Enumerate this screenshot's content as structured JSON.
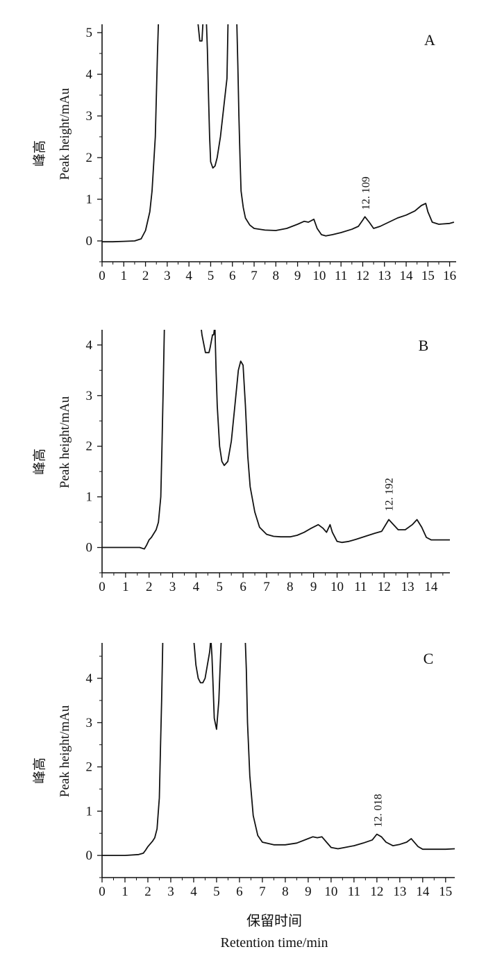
{
  "chart_data": [
    {
      "type": "line",
      "panel_label": "A",
      "ylabel_cn": "峰高",
      "ylabel": "Peak height/mAu",
      "xlim": [
        0,
        16.3
      ],
      "ylim": [
        -0.5,
        5.2
      ],
      "xticks": [
        0,
        1,
        2,
        3,
        4,
        5,
        6,
        7,
        8,
        9,
        10,
        11,
        12,
        13,
        14,
        15,
        16
      ],
      "yticks": [
        0,
        1,
        2,
        3,
        4,
        5
      ],
      "annotation": {
        "text": "12. 109",
        "x": 12.109,
        "y": 0.58
      },
      "series": [
        {
          "x": [
            0,
            0.5,
            1,
            1.5,
            1.8,
            2.0,
            2.2,
            2.3,
            2.45,
            2.55,
            2.6,
            4.4,
            4.5,
            4.6,
            4.65,
            4.8,
            4.85,
            4.9,
            4.95,
            5.0,
            5.1,
            5.2,
            5.3,
            5.45,
            5.6,
            5.75,
            5.8,
            5.85,
            6.2,
            6.25,
            6.3,
            6.35,
            6.4,
            6.5,
            6.6,
            6.8,
            7.0,
            7.5,
            8.0,
            8.5,
            9.0,
            9.3,
            9.5,
            9.75,
            9.9,
            10.1,
            10.3,
            10.6,
            11.0,
            11.5,
            11.8,
            12.0,
            12.1,
            12.3,
            12.5,
            12.8,
            13.2,
            13.6,
            14.0,
            14.4,
            14.7,
            14.9,
            15.0,
            15.2,
            15.5,
            16.0,
            16.2
          ],
          "y": [
            -0.02,
            -0.02,
            -0.01,
            0.0,
            0.05,
            0.25,
            0.7,
            1.2,
            2.5,
            4.5,
            5.3,
            5.3,
            4.8,
            4.8,
            5.3,
            5.3,
            4.6,
            3.5,
            2.5,
            1.9,
            1.75,
            1.8,
            2.0,
            2.5,
            3.2,
            3.9,
            5.3,
            5.3,
            5.3,
            4.2,
            3.0,
            2.0,
            1.2,
            0.8,
            0.55,
            0.38,
            0.3,
            0.26,
            0.25,
            0.3,
            0.4,
            0.47,
            0.45,
            0.52,
            0.3,
            0.15,
            0.12,
            0.15,
            0.2,
            0.28,
            0.35,
            0.5,
            0.58,
            0.45,
            0.3,
            0.35,
            0.45,
            0.55,
            0.62,
            0.72,
            0.85,
            0.9,
            0.7,
            0.45,
            0.4,
            0.42,
            0.45
          ]
        }
      ]
    },
    {
      "type": "line",
      "panel_label": "B",
      "ylabel_cn": "峰高",
      "ylabel": "Peak height/mAu",
      "xlim": [
        0,
        14.8
      ],
      "ylim": [
        -0.5,
        4.3
      ],
      "xticks": [
        0,
        1,
        2,
        3,
        4,
        5,
        6,
        7,
        8,
        9,
        10,
        11,
        12,
        13,
        14
      ],
      "yticks": [
        0,
        1,
        2,
        3,
        4
      ],
      "annotation": {
        "text": "12. 192",
        "x": 12.192,
        "y": 0.58
      },
      "series": [
        {
          "x": [
            0,
            1.0,
            1.6,
            1.8,
            1.9,
            2.0,
            2.1,
            2.3,
            2.4,
            2.5,
            2.55,
            2.6,
            2.65,
            2.7,
            4.2,
            4.25,
            4.4,
            4.55,
            4.6,
            4.7,
            4.75,
            4.8,
            4.85,
            4.9,
            5.0,
            5.1,
            5.2,
            5.35,
            5.5,
            5.65,
            5.8,
            5.9,
            6.0,
            6.1,
            6.2,
            6.3,
            6.5,
            6.7,
            7.0,
            7.3,
            7.6,
            8.0,
            8.3,
            8.6,
            8.9,
            9.2,
            9.4,
            9.55,
            9.7,
            9.8,
            10.0,
            10.2,
            10.5,
            10.8,
            11.2,
            11.6,
            11.9,
            12.2,
            12.4,
            12.6,
            12.9,
            13.2,
            13.4,
            13.6,
            13.8,
            14.0,
            14.5,
            14.8
          ],
          "y": [
            0,
            0,
            0,
            -0.03,
            0.05,
            0.15,
            0.2,
            0.35,
            0.5,
            1.0,
            2.0,
            3.1,
            4.3,
            4.4,
            4.4,
            4.2,
            3.85,
            3.85,
            3.95,
            4.2,
            4.2,
            4.4,
            3.5,
            2.8,
            2.0,
            1.7,
            1.62,
            1.7,
            2.1,
            2.8,
            3.5,
            3.68,
            3.6,
            2.8,
            1.8,
            1.2,
            0.7,
            0.4,
            0.26,
            0.22,
            0.21,
            0.21,
            0.24,
            0.3,
            0.38,
            0.45,
            0.38,
            0.3,
            0.45,
            0.3,
            0.12,
            0.1,
            0.12,
            0.16,
            0.22,
            0.28,
            0.32,
            0.55,
            0.45,
            0.35,
            0.35,
            0.45,
            0.55,
            0.4,
            0.2,
            0.15,
            0.15,
            0.15
          ]
        }
      ]
    },
    {
      "type": "line",
      "panel_label": "C",
      "ylabel_cn": "峰高",
      "ylabel": "Peak height/mAu",
      "xlim": [
        0,
        15.4
      ],
      "ylim": [
        -0.5,
        4.8
      ],
      "xticks": [
        0,
        1,
        2,
        3,
        4,
        5,
        6,
        7,
        8,
        9,
        10,
        11,
        12,
        13,
        14,
        15
      ],
      "yticks": [
        0,
        1,
        2,
        3,
        4
      ],
      "annotation": {
        "text": "12. 018",
        "x": 12.018,
        "y": 0.48
      },
      "series": [
        {
          "x": [
            0,
            1.0,
            1.6,
            1.8,
            1.9,
            2.0,
            2.2,
            2.3,
            2.4,
            2.5,
            2.55,
            2.6,
            2.65,
            2.7,
            4.0,
            4.05,
            4.1,
            4.2,
            4.3,
            4.4,
            4.5,
            4.6,
            4.7,
            4.75,
            4.8,
            4.85,
            4.9,
            5.0,
            5.1,
            5.15,
            5.2,
            5.3,
            6.25,
            6.3,
            6.35,
            6.45,
            6.6,
            6.8,
            7.0,
            7.5,
            8.0,
            8.5,
            9.0,
            9.2,
            9.4,
            9.6,
            9.8,
            10.0,
            10.3,
            10.6,
            11.0,
            11.4,
            11.8,
            12.0,
            12.2,
            12.4,
            12.7,
            13.0,
            13.3,
            13.5,
            13.8,
            14.0,
            14.5,
            15.0,
            15.4
          ],
          "y": [
            0,
            0,
            0.02,
            0.05,
            0.12,
            0.2,
            0.32,
            0.4,
            0.6,
            1.3,
            2.4,
            3.5,
            4.8,
            4.9,
            4.9,
            4.6,
            4.3,
            4.0,
            3.9,
            3.9,
            4.0,
            4.3,
            4.6,
            4.9,
            4.5,
            3.8,
            3.1,
            2.85,
            3.5,
            4.2,
            4.8,
            4.9,
            4.9,
            4.2,
            3.0,
            1.8,
            0.9,
            0.45,
            0.3,
            0.24,
            0.24,
            0.28,
            0.38,
            0.42,
            0.4,
            0.42,
            0.3,
            0.18,
            0.15,
            0.18,
            0.22,
            0.28,
            0.35,
            0.48,
            0.42,
            0.3,
            0.22,
            0.25,
            0.3,
            0.38,
            0.2,
            0.14,
            0.14,
            0.14,
            0.15
          ]
        }
      ]
    }
  ],
  "xlabel_cn": "保留时间",
  "xlabel": "Retention time/min"
}
